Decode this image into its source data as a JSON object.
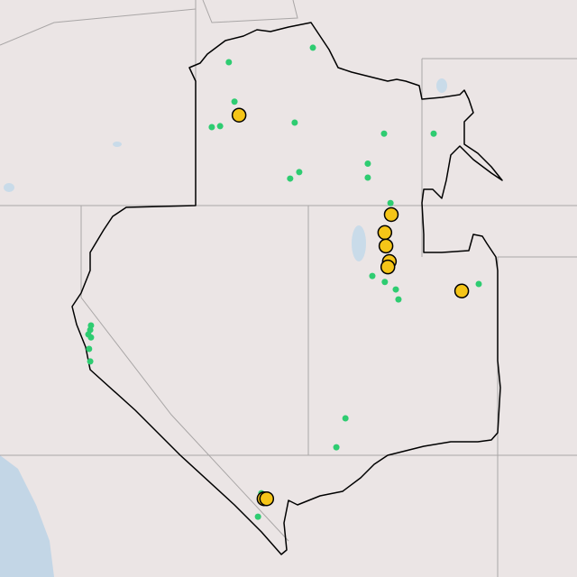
{
  "map": {
    "projection_reference": {
      "lon_min": -122.2,
      "lon_max": -106.9,
      "lat_min": 30.5,
      "lat_max": 46.1
    },
    "colors": {
      "land": "#ebe5e5",
      "water": "#c3d6e6",
      "state_border": "#a9a6a6",
      "region_outline": "#000000",
      "green_marker": "#2ecc71",
      "yellow_marker": "#f5c518",
      "yellow_marker_stroke": "#000000"
    },
    "green_points": [
      [
        -113.93,
        45.16
      ],
      [
        -116.15,
        44.87
      ],
      [
        -116.0,
        44.08
      ],
      [
        -116.6,
        43.57
      ],
      [
        -116.38,
        43.59
      ],
      [
        -114.41,
        43.66
      ],
      [
        -112.05,
        43.44
      ],
      [
        -110.74,
        43.44
      ],
      [
        -112.48,
        42.84
      ],
      [
        -112.48,
        42.56
      ],
      [
        -114.29,
        42.67
      ],
      [
        -114.53,
        42.54
      ],
      [
        -111.88,
        42.05
      ],
      [
        -112.36,
        40.59
      ],
      [
        -112.03,
        40.47
      ],
      [
        -111.74,
        40.32
      ],
      [
        -111.67,
        40.12
      ],
      [
        -109.55,
        40.43
      ],
      [
        -113.07,
        37.74
      ],
      [
        -113.31,
        37.16
      ],
      [
        -119.79,
        39.6
      ],
      [
        -119.81,
        39.51
      ],
      [
        -119.86,
        39.42
      ],
      [
        -119.79,
        39.36
      ],
      [
        -119.84,
        39.13
      ],
      [
        -119.81,
        38.88
      ],
      [
        -115.38,
        35.77
      ],
      [
        -115.29,
        36.24
      ]
    ],
    "yellow_points": [
      [
        -115.88,
        43.81
      ],
      [
        -111.86,
        41.82
      ],
      [
        -112.03,
        41.46
      ],
      [
        -112.0,
        41.19
      ],
      [
        -111.91,
        40.88
      ],
      [
        -111.95,
        40.77
      ],
      [
        -110.0,
        40.29
      ],
      [
        -115.22,
        36.13
      ],
      [
        -115.15,
        36.13
      ]
    ]
  }
}
